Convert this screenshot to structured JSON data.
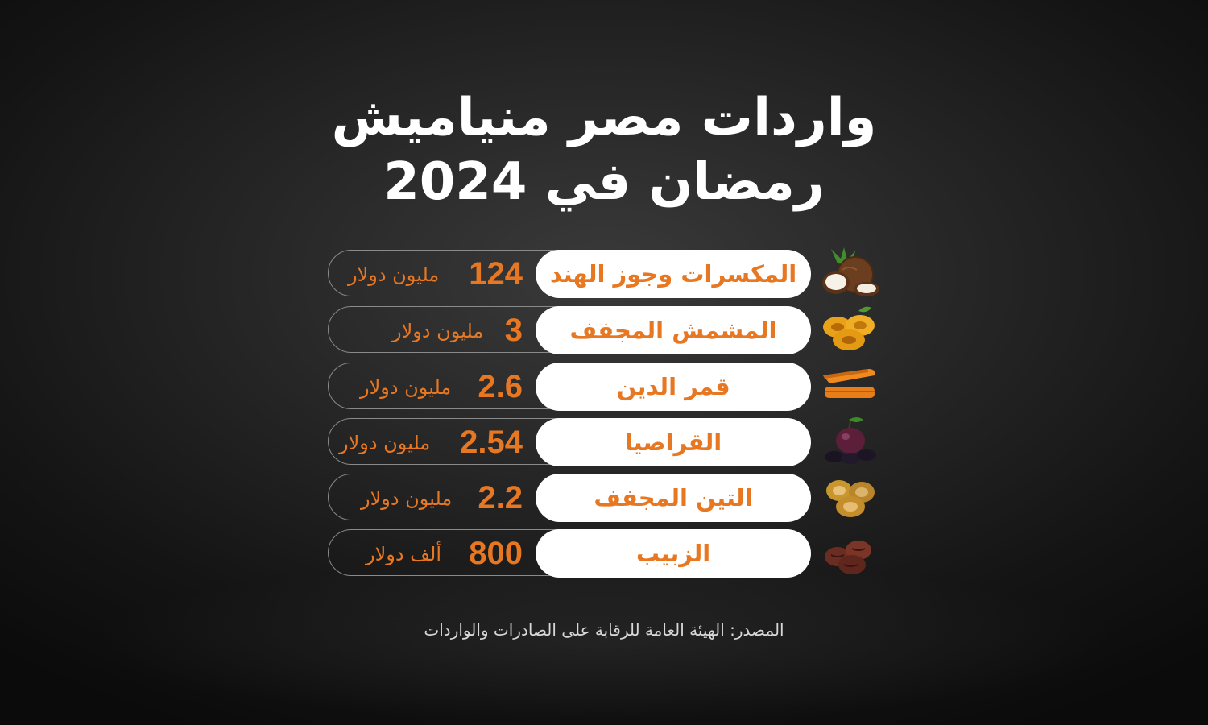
{
  "title_line1": "واردات مصر منياميش",
  "title_line2": "رمضان في 2024",
  "source": "المصدر: الهيئة العامة للرقابة على الصادرات والواردات",
  "colors": {
    "accent": "#e87722",
    "background": "#1c1c1c",
    "label_bg": "#ffffff"
  },
  "chart_data": {
    "type": "table",
    "title": "واردات مصر من ياميش رمضان في 2024",
    "rows": [
      {
        "label": "المكسرات وجوز الهند",
        "value": "124",
        "unit": "مليون دولار",
        "icon": "coconut-icon"
      },
      {
        "label": "المشمش المجفف",
        "value": "3",
        "unit": "مليون دولار",
        "icon": "dried-apricot-icon"
      },
      {
        "label": "قمر الدين",
        "value": "2.6",
        "unit": "مليون دولار",
        "icon": "apricot-paste-icon"
      },
      {
        "label": "القراصيا",
        "value": "2.54",
        "unit": "مليون دولار",
        "icon": "prune-icon"
      },
      {
        "label": "التين المجفف",
        "value": "2.2",
        "unit": "مليون دولار",
        "icon": "dried-fig-icon"
      },
      {
        "label": "الزبيب",
        "value": "800",
        "unit": "ألف دولار",
        "icon": "raisin-icon"
      }
    ]
  }
}
